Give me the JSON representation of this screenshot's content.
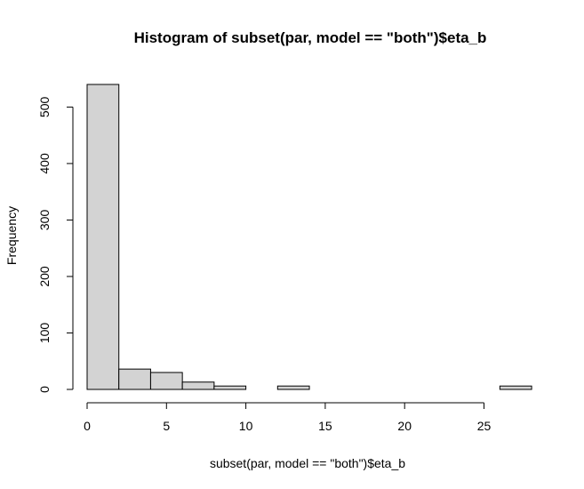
{
  "chart_data": {
    "type": "bar",
    "subtype": "histogram",
    "title": "Histogram of subset(par, model == \"both\")$eta_b",
    "xlabel": "subset(par, model == \"both\")$eta_b",
    "ylabel": "Frequency",
    "bins": [
      {
        "start": 0,
        "end": 2,
        "count": 540
      },
      {
        "start": 2,
        "end": 4,
        "count": 36
      },
      {
        "start": 4,
        "end": 6,
        "count": 30
      },
      {
        "start": 6,
        "end": 8,
        "count": 13
      },
      {
        "start": 8,
        "end": 10,
        "count": 6
      },
      {
        "start": 10,
        "end": 12,
        "count": 0
      },
      {
        "start": 12,
        "end": 14,
        "count": 6
      },
      {
        "start": 14,
        "end": 16,
        "count": 0
      },
      {
        "start": 16,
        "end": 18,
        "count": 0
      },
      {
        "start": 18,
        "end": 20,
        "count": 0
      },
      {
        "start": 20,
        "end": 22,
        "count": 0
      },
      {
        "start": 22,
        "end": 24,
        "count": 0
      },
      {
        "start": 24,
        "end": 26,
        "count": 0
      },
      {
        "start": 26,
        "end": 28,
        "count": 6
      }
    ],
    "xticks": [
      "0",
      "5",
      "10",
      "15",
      "20",
      "25"
    ],
    "yticks": [
      "0",
      "100",
      "200",
      "300",
      "400",
      "500"
    ],
    "xlim": [
      0,
      28
    ],
    "ylim": [
      0,
      540
    ],
    "bar_color": "#d3d3d3",
    "bar_edge_color": "#000000",
    "grid": false,
    "legend": "none"
  }
}
